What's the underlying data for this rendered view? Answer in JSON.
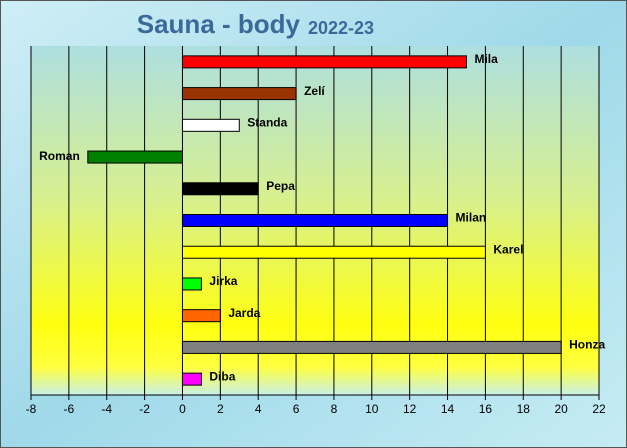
{
  "chart_data": {
    "type": "bar",
    "orientation": "horizontal",
    "title": "Sauna - body",
    "subtitle": "2022-23",
    "categories": [
      "Mila",
      "Zelí",
      "Standa",
      "Roman",
      "Pepa",
      "Milan",
      "Karel",
      "Jirka",
      "Jarda",
      "Honza",
      "Diba"
    ],
    "values": [
      15,
      6,
      3,
      -5,
      4,
      14,
      16,
      1,
      2,
      20,
      1
    ],
    "colors": [
      "#ff0000",
      "#993300",
      "#ffffff",
      "#008000",
      "#000000",
      "#0000ff",
      "#ffff00",
      "#00ff00",
      "#ff6600",
      "#808080",
      "#ff00ff"
    ],
    "xlim": [
      -8,
      22
    ],
    "xticks": [
      -8,
      -6,
      -4,
      -2,
      0,
      2,
      4,
      6,
      8,
      10,
      12,
      14,
      16,
      18,
      20,
      22
    ],
    "grid": true
  }
}
